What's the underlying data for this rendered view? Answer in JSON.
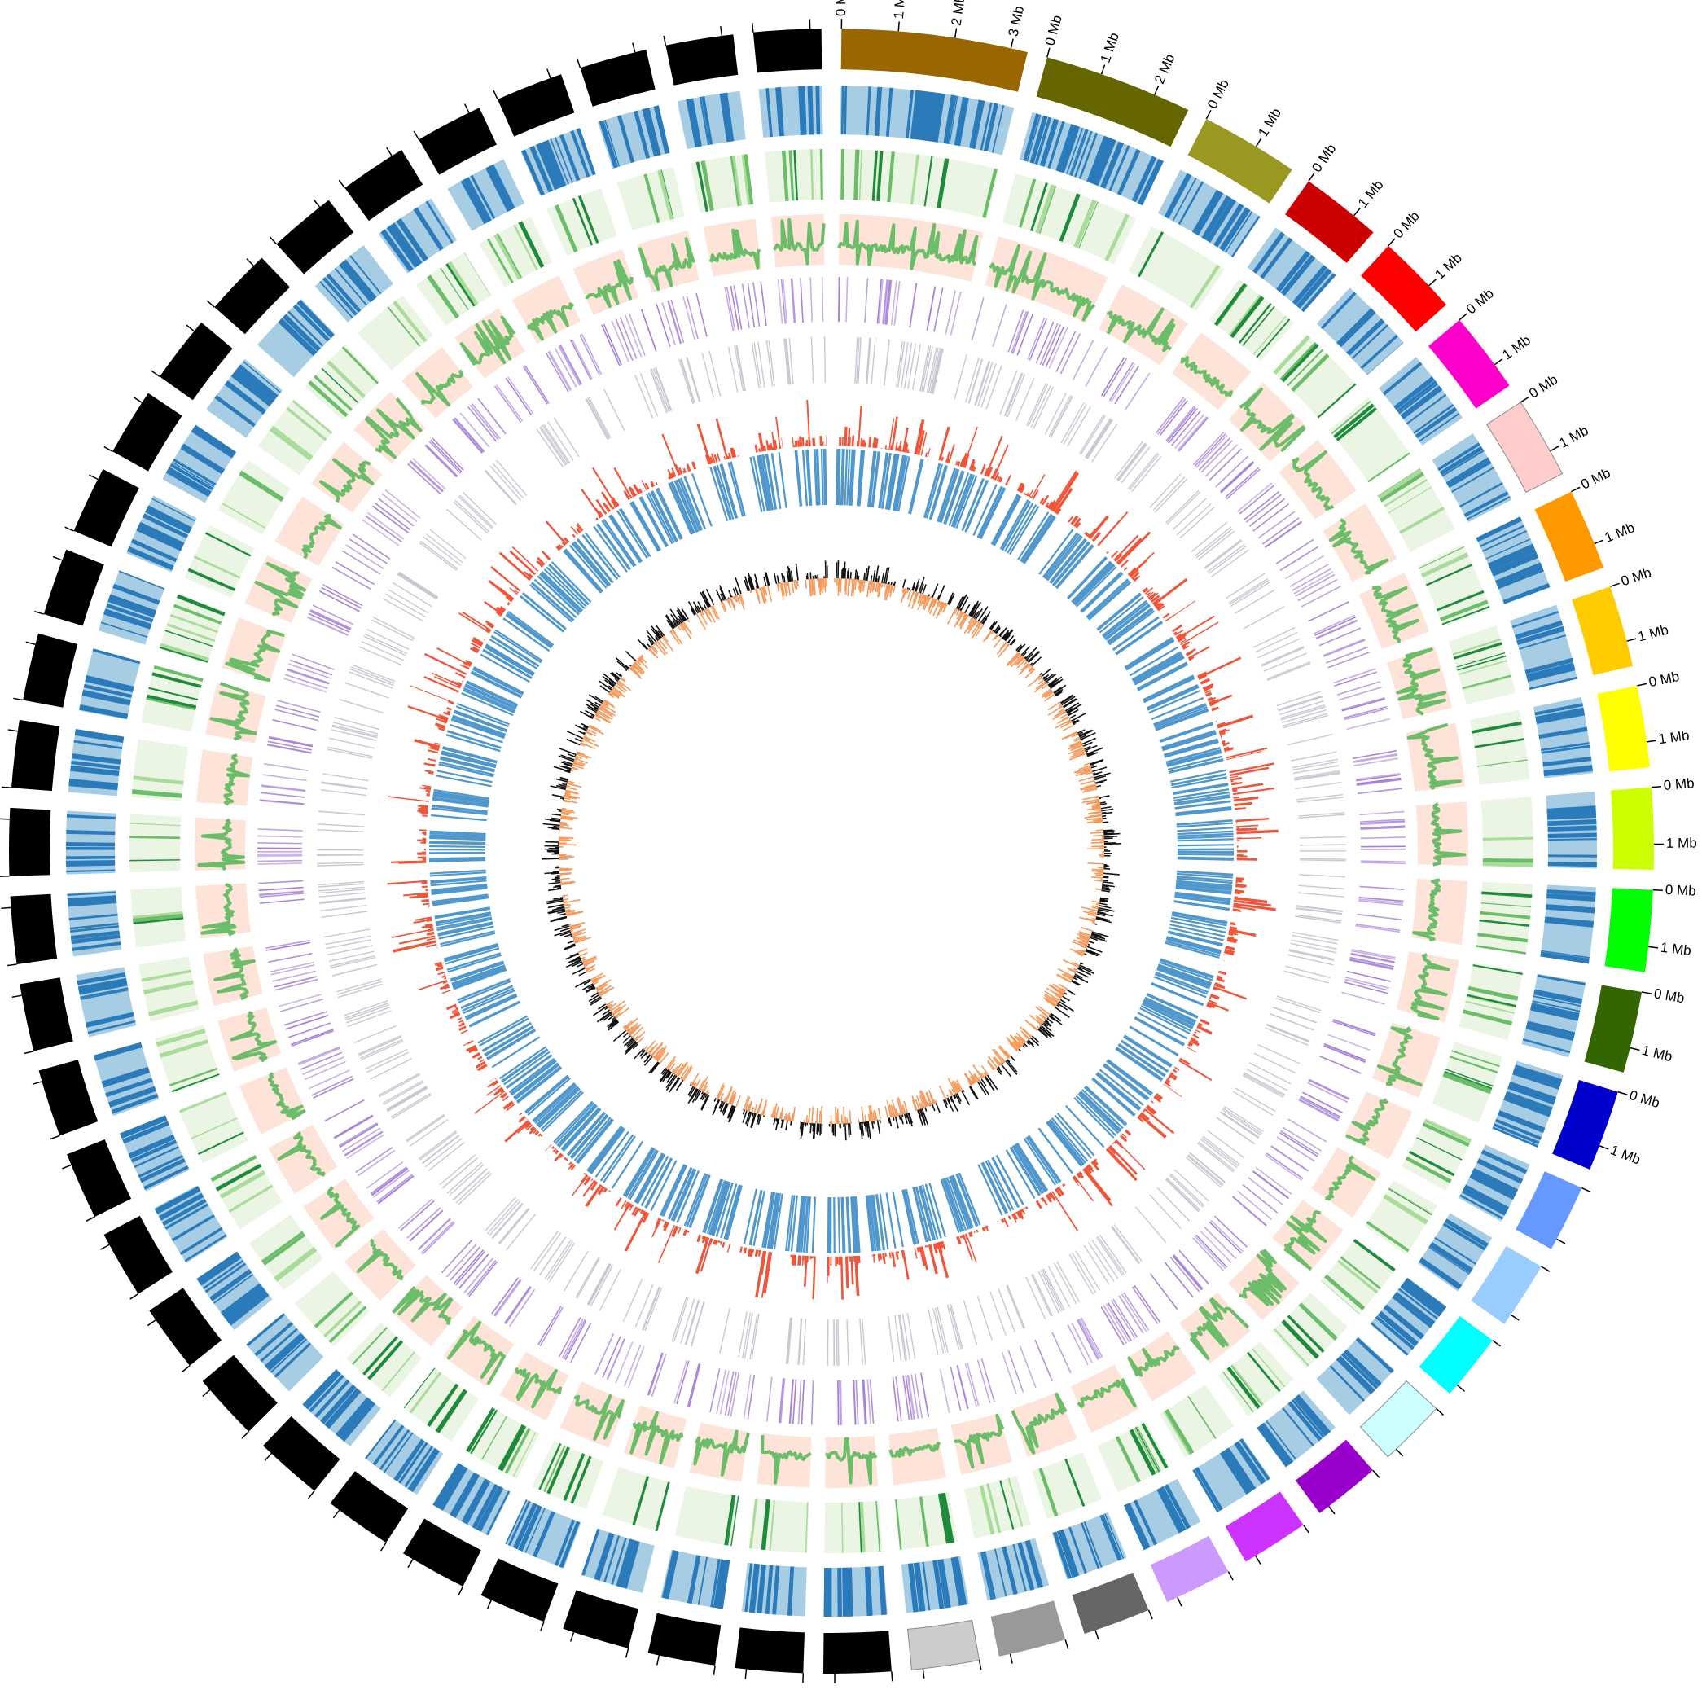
{
  "diagram": {
    "type": "circos",
    "chromosomes": [
      {
        "id": "chr1",
        "size_mb": 3.3,
        "color": "#996600",
        "tick_labels": [
          "0 Mb",
          "1 Mb",
          "2 Mb",
          "3 Mb"
        ]
      },
      {
        "id": "chr2",
        "size_mb": 2.65,
        "color": "#666600",
        "tick_labels": [
          "0 Mb",
          "1 Mb",
          "2 Mb"
        ]
      },
      {
        "id": "chr3",
        "size_mb": 1.75,
        "color": "#999922",
        "tick_labels": [
          "0 Mb",
          "1 Mb"
        ]
      },
      {
        "id": "chr4",
        "size_mb": 1.45,
        "color": "#cc0000",
        "tick_labels": [
          "0 Mb",
          "1 Mb"
        ]
      },
      {
        "id": "chr5",
        "size_mb": 1.45,
        "color": "#ff0000",
        "tick_labels": [
          "0 Mb",
          "1 Mb"
        ]
      },
      {
        "id": "chr6",
        "size_mb": 1.45,
        "color": "#ff00cc",
        "tick_labels": [
          "0 Mb",
          "1 Mb"
        ]
      },
      {
        "id": "chr7",
        "size_mb": 1.45,
        "color": "#ffcccc",
        "tick_labels": [
          "0 Mb",
          "1 Mb"
        ]
      },
      {
        "id": "chr8",
        "size_mb": 1.45,
        "color": "#ff9900",
        "tick_labels": [
          "0 Mb",
          "1 Mb"
        ]
      },
      {
        "id": "chr9",
        "size_mb": 1.45,
        "color": "#ffcc00",
        "tick_labels": [
          "0 Mb",
          "1 Mb"
        ]
      },
      {
        "id": "chr10",
        "size_mb": 1.45,
        "color": "#ffff00",
        "tick_labels": [
          "0 Mb",
          "1 Mb"
        ]
      },
      {
        "id": "chr11",
        "size_mb": 1.45,
        "color": "#ccff00",
        "tick_labels": [
          "0 Mb",
          "1 Mb"
        ]
      },
      {
        "id": "chr12",
        "size_mb": 1.45,
        "color": "#00ff00",
        "tick_labels": [
          "0 Mb",
          "1 Mb"
        ]
      },
      {
        "id": "chr13",
        "size_mb": 1.45,
        "color": "#336600",
        "tick_labels": [
          "0 Mb",
          "1 Mb"
        ]
      },
      {
        "id": "chr14",
        "size_mb": 1.45,
        "color": "#0000cc",
        "tick_labels": [
          "0 Mb",
          "1 Mb"
        ]
      },
      {
        "id": "chr15",
        "size_mb": 1.2,
        "color": "#6699ff",
        "tick_labels": []
      },
      {
        "id": "chr16",
        "size_mb": 1.2,
        "color": "#99ccff",
        "tick_labels": []
      },
      {
        "id": "chr17",
        "size_mb": 1.2,
        "color": "#00ffff",
        "tick_labels": []
      },
      {
        "id": "chr18",
        "size_mb": 1.2,
        "color": "#ccffff",
        "tick_labels": []
      },
      {
        "id": "chr19",
        "size_mb": 1.2,
        "color": "#9900cc",
        "tick_labels": []
      },
      {
        "id": "chr20",
        "size_mb": 1.2,
        "color": "#cc33ff",
        "tick_labels": []
      },
      {
        "id": "chr21",
        "size_mb": 1.2,
        "color": "#cc99ff",
        "tick_labels": []
      },
      {
        "id": "chr22",
        "size_mb": 1.2,
        "color": "#666666",
        "tick_labels": []
      },
      {
        "id": "chr23",
        "size_mb": 1.2,
        "color": "#999999",
        "tick_labels": []
      },
      {
        "id": "chr24",
        "size_mb": 1.2,
        "color": "#cccccc",
        "tick_labels": []
      },
      {
        "id": "chr25",
        "size_mb": 1.2,
        "color": "#000000",
        "tick_labels": []
      },
      {
        "id": "chr26",
        "size_mb": 1.2,
        "color": "#000000",
        "tick_labels": []
      },
      {
        "id": "chr27",
        "size_mb": 1.2,
        "color": "#000000",
        "tick_labels": []
      },
      {
        "id": "chr28",
        "size_mb": 1.2,
        "color": "#000000",
        "tick_labels": []
      },
      {
        "id": "chr29",
        "size_mb": 1.2,
        "color": "#000000",
        "tick_labels": []
      },
      {
        "id": "chr30",
        "size_mb": 1.2,
        "color": "#000000",
        "tick_labels": []
      },
      {
        "id": "chr31",
        "size_mb": 1.2,
        "color": "#000000",
        "tick_labels": []
      },
      {
        "id": "chr32",
        "size_mb": 1.2,
        "color": "#000000",
        "tick_labels": []
      },
      {
        "id": "chr33",
        "size_mb": 1.2,
        "color": "#000000",
        "tick_labels": []
      },
      {
        "id": "chr34",
        "size_mb": 1.2,
        "color": "#000000",
        "tick_labels": []
      },
      {
        "id": "chr35",
        "size_mb": 1.2,
        "color": "#000000",
        "tick_labels": []
      },
      {
        "id": "chr36",
        "size_mb": 1.2,
        "color": "#000000",
        "tick_labels": []
      },
      {
        "id": "chr37",
        "size_mb": 1.2,
        "color": "#000000",
        "tick_labels": []
      },
      {
        "id": "chr38",
        "size_mb": 1.2,
        "color": "#000000",
        "tick_labels": []
      },
      {
        "id": "chr39",
        "size_mb": 1.2,
        "color": "#000000",
        "tick_labels": []
      },
      {
        "id": "chr40",
        "size_mb": 1.2,
        "color": "#000000",
        "tick_labels": []
      },
      {
        "id": "chr41",
        "size_mb": 1.2,
        "color": "#000000",
        "tick_labels": []
      },
      {
        "id": "chr42",
        "size_mb": 1.2,
        "color": "#000000",
        "tick_labels": []
      },
      {
        "id": "chr43",
        "size_mb": 1.2,
        "color": "#000000",
        "tick_labels": []
      },
      {
        "id": "chr44",
        "size_mb": 1.2,
        "color": "#000000",
        "tick_labels": []
      },
      {
        "id": "chr45",
        "size_mb": 1.2,
        "color": "#000000",
        "tick_labels": []
      },
      {
        "id": "chr46",
        "size_mb": 1.2,
        "color": "#000000",
        "tick_labels": []
      },
      {
        "id": "chr47",
        "size_mb": 1.2,
        "color": "#000000",
        "tick_labels": []
      },
      {
        "id": "chr48",
        "size_mb": 1.2,
        "color": "#000000",
        "tick_labels": []
      },
      {
        "id": "chr49",
        "size_mb": 1.2,
        "color": "#000000",
        "tick_labels": []
      },
      {
        "id": "chr50",
        "size_mb": 1.2,
        "color": "#000000",
        "tick_labels": []
      },
      {
        "id": "chr51",
        "size_mb": 1.2,
        "color": "#000000",
        "tick_labels": []
      },
      {
        "id": "chr52",
        "size_mb": 1.2,
        "color": "#000000",
        "tick_labels": []
      },
      {
        "id": "chr53",
        "size_mb": 1.2,
        "color": "#000000",
        "tick_labels": []
      },
      {
        "id": "chr54",
        "size_mb": 1.2,
        "color": "#000000",
        "tick_labels": []
      }
    ],
    "tracks": [
      {
        "id": "ideogram",
        "color": "chromosome"
      },
      {
        "id": "gene-density-heatmap",
        "colors": [
          "#a6cde4",
          "#2b7bba"
        ]
      },
      {
        "id": "feature-heatmap-green",
        "colors": [
          "#eaf5e4",
          "#a9dc9a",
          "#6cbd69",
          "#1e8a3c"
        ]
      },
      {
        "id": "gc-line",
        "background": "#fde3d8",
        "line_color": "#6cbd69"
      },
      {
        "id": "purple-ticks",
        "color": "#a57fd8"
      },
      {
        "id": "gray-ticks",
        "color": "#c8c8d2"
      },
      {
        "id": "red-histogram",
        "color": "#f0553a"
      },
      {
        "id": "blue-ticks",
        "color": "#4f97cc"
      },
      {
        "id": "skew-histogram",
        "positive_color": "#111111",
        "negative_color": "#f59a5c"
      }
    ]
  }
}
